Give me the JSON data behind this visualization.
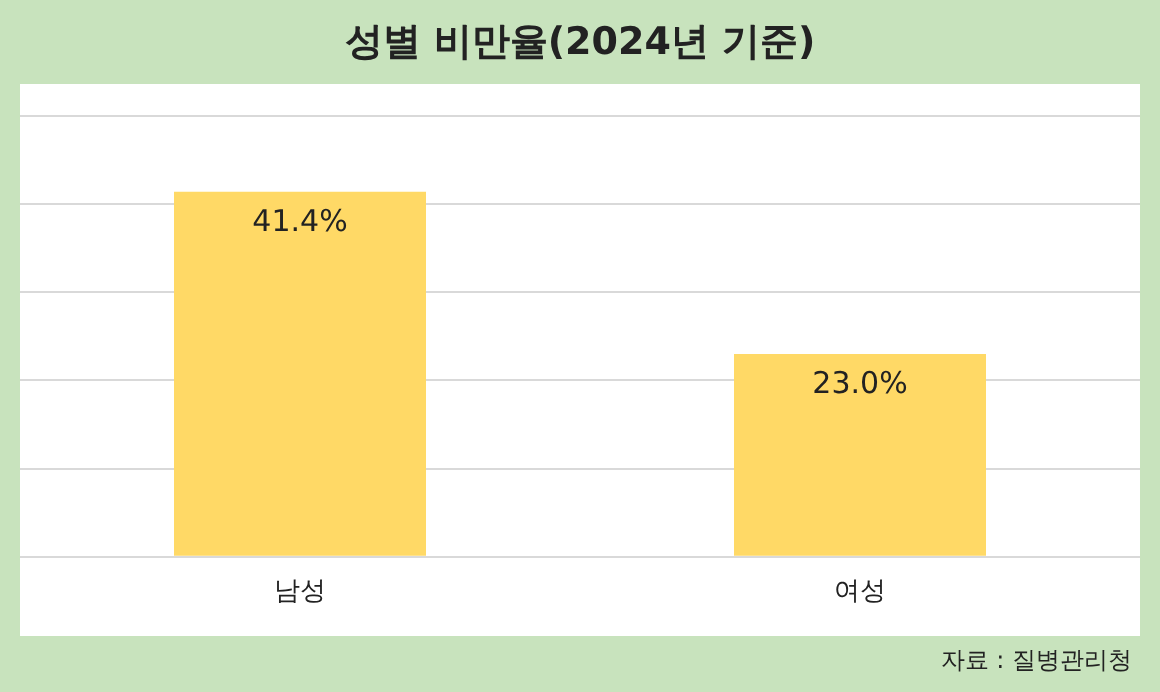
{
  "chart_data": {
    "type": "bar",
    "title": "성별 비만율(2024년 기준)",
    "categories": [
      "남성",
      "여성"
    ],
    "values": [
      41.4,
      23.0
    ],
    "value_labels": [
      "41.4%",
      "23.0%"
    ],
    "color": "#ffd966",
    "ylim": [
      0,
      50
    ],
    "yticks": [
      {
        "value": 0,
        "label": null
      },
      {
        "value": 10,
        "label": null
      },
      {
        "value": 20,
        "label": null
      },
      {
        "value": 30,
        "label": null
      },
      {
        "value": 40,
        "label": null
      },
      {
        "value": 50,
        "label": null
      }
    ],
    "grid": "y",
    "tick_labels": "x",
    "legend": false,
    "annotations": [
      "자료 : 질병관리청"
    ]
  }
}
